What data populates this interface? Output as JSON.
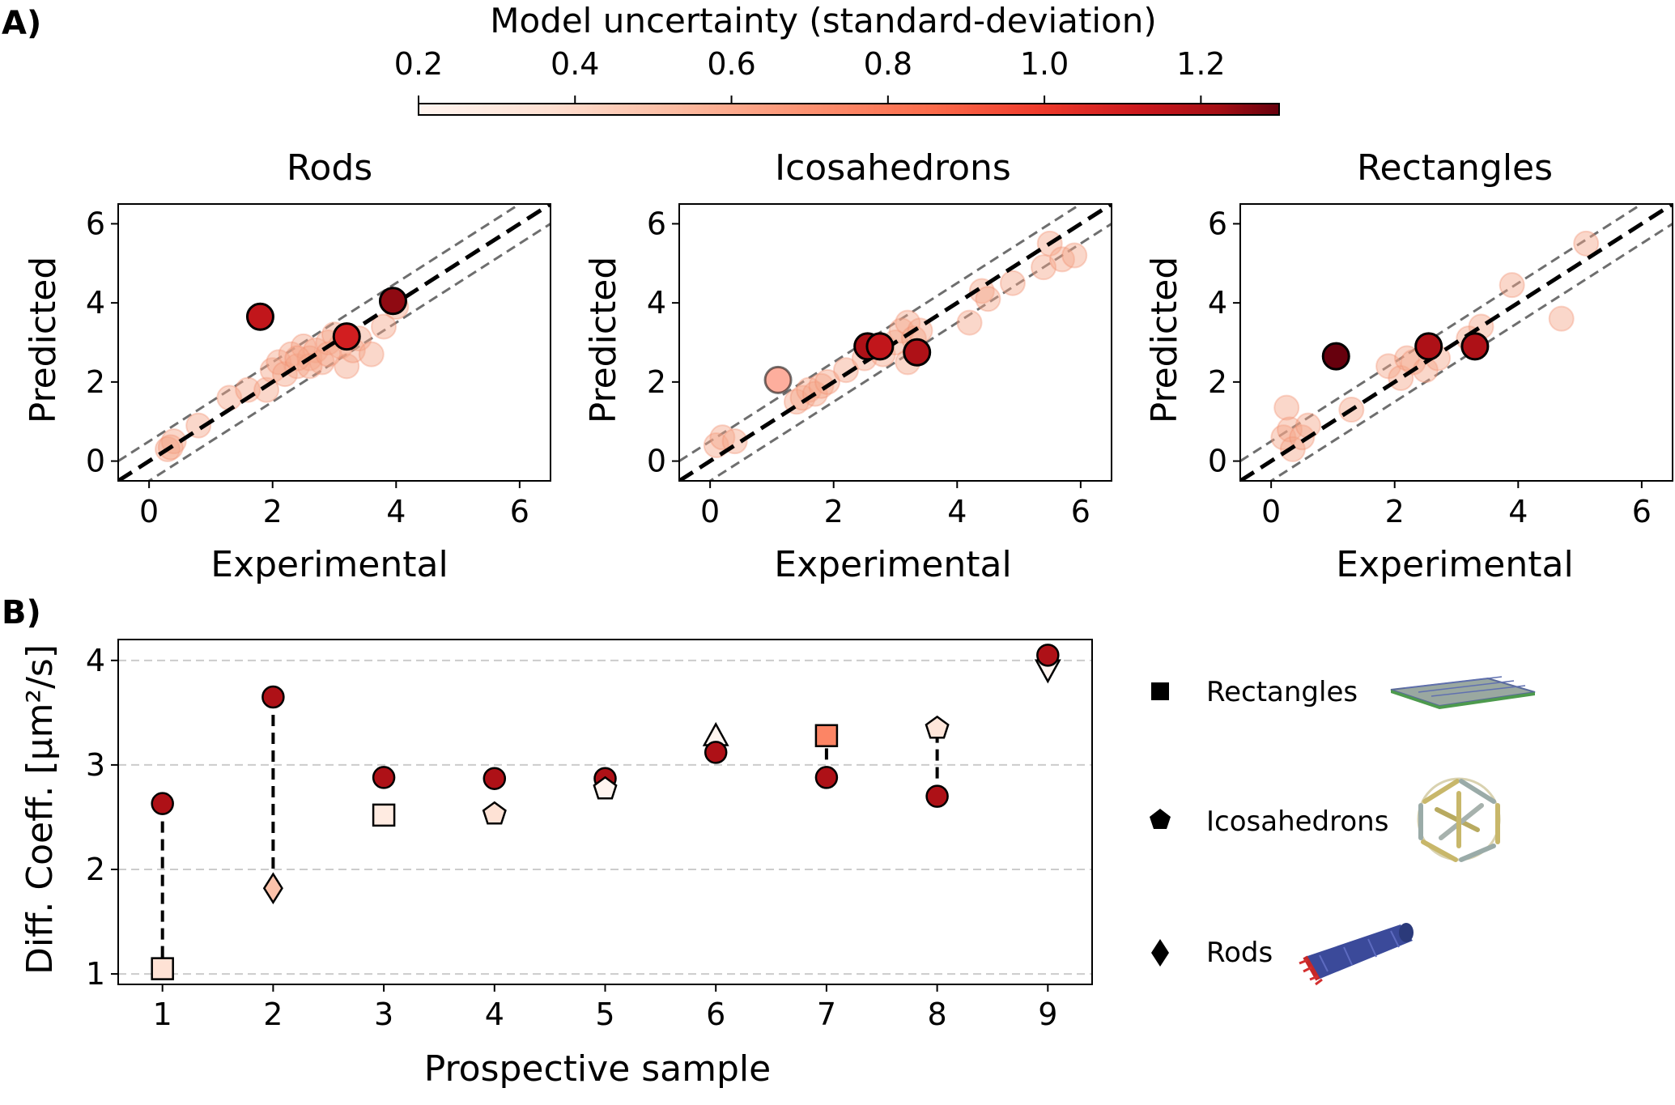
{
  "figure": {
    "panel_a_label": "A)",
    "panel_b_label": "B)"
  },
  "colorbar": {
    "title": "Model uncertainty (standard-deviation)",
    "ticks": [
      "0.2",
      "0.4",
      "0.6",
      "0.8",
      "1.0",
      "1.2"
    ],
    "range": [
      0.2,
      1.3
    ],
    "colormap": "Reds"
  },
  "chart_data": [
    {
      "type": "scatter",
      "title": "Rods",
      "xlabel": "Experimental",
      "ylabel": "Predicted",
      "xlim": [
        -0.5,
        6.5
      ],
      "ylim": [
        -0.5,
        6.5
      ],
      "xticks": [
        "0",
        "2",
        "4",
        "6"
      ],
      "yticks": [
        "0",
        "2",
        "4",
        "6"
      ],
      "identity_line": true,
      "band_offset": 0.5,
      "training_points": [
        [
          0.3,
          0.3
        ],
        [
          0.4,
          0.5
        ],
        [
          0.35,
          0.35
        ],
        [
          0.8,
          0.9
        ],
        [
          1.3,
          1.6
        ],
        [
          1.6,
          1.8
        ],
        [
          1.9,
          1.8
        ],
        [
          2.0,
          2.3
        ],
        [
          2.1,
          2.5
        ],
        [
          2.2,
          2.2
        ],
        [
          2.3,
          2.7
        ],
        [
          2.4,
          2.4
        ],
        [
          2.5,
          2.9
        ],
        [
          2.6,
          2.6
        ],
        [
          2.7,
          2.8
        ],
        [
          2.8,
          2.5
        ],
        [
          2.9,
          3.0
        ],
        [
          3.0,
          3.2
        ],
        [
          3.1,
          2.9
        ],
        [
          3.2,
          2.4
        ],
        [
          3.3,
          2.8
        ],
        [
          3.4,
          3.1
        ],
        [
          3.6,
          2.7
        ],
        [
          3.8,
          3.4
        ],
        [
          4.0,
          3.9
        ],
        [
          2.6,
          2.4
        ],
        [
          2.4,
          2.6
        ],
        [
          2.9,
          2.7
        ]
      ],
      "highlight_points": [
        {
          "x": 1.8,
          "y": 3.65,
          "std": 1.15
        },
        {
          "x": 3.2,
          "y": 3.15,
          "std": 1.1
        },
        {
          "x": 3.95,
          "y": 4.05,
          "std": 1.25
        }
      ]
    },
    {
      "type": "scatter",
      "title": "Icosahedrons",
      "xlabel": "Experimental",
      "ylabel": "Predicted",
      "xlim": [
        -0.5,
        6.5
      ],
      "ylim": [
        -0.5,
        6.5
      ],
      "xticks": [
        "0",
        "2",
        "4",
        "6"
      ],
      "yticks": [
        "0",
        "2",
        "4",
        "6"
      ],
      "identity_line": true,
      "band_offset": 0.5,
      "training_points": [
        [
          0.1,
          0.4
        ],
        [
          0.2,
          0.6
        ],
        [
          0.4,
          0.5
        ],
        [
          1.4,
          1.5
        ],
        [
          1.5,
          1.6
        ],
        [
          1.6,
          1.8
        ],
        [
          1.7,
          1.7
        ],
        [
          1.8,
          1.9
        ],
        [
          1.9,
          2.0
        ],
        [
          2.2,
          2.3
        ],
        [
          2.5,
          2.6
        ],
        [
          2.8,
          2.7
        ],
        [
          3.0,
          3.0
        ],
        [
          3.1,
          3.3
        ],
        [
          3.2,
          3.5
        ],
        [
          3.3,
          3.1
        ],
        [
          3.4,
          3.3
        ],
        [
          3.2,
          2.5
        ],
        [
          4.2,
          3.5
        ],
        [
          4.4,
          4.3
        ],
        [
          4.5,
          4.1
        ],
        [
          4.9,
          4.5
        ],
        [
          5.4,
          4.9
        ],
        [
          5.5,
          5.5
        ],
        [
          5.7,
          5.1
        ],
        [
          5.9,
          5.2
        ]
      ],
      "highlight_points": [
        {
          "x": 1.1,
          "y": 2.05,
          "std": 0.85
        },
        {
          "x": 2.55,
          "y": 2.9,
          "std": 1.2
        },
        {
          "x": 2.75,
          "y": 2.9,
          "std": 1.15
        },
        {
          "x": 3.35,
          "y": 2.75,
          "std": 1.2
        }
      ]
    },
    {
      "type": "scatter",
      "title": "Rectangles",
      "xlabel": "Experimental",
      "ylabel": "Predicted",
      "xlim": [
        -0.5,
        6.5
      ],
      "ylim": [
        -0.5,
        6.5
      ],
      "xticks": [
        "0",
        "2",
        "4",
        "6"
      ],
      "yticks": [
        "0",
        "2",
        "4",
        "6"
      ],
      "identity_line": true,
      "band_offset": 0.5,
      "training_points": [
        [
          0.2,
          0.6
        ],
        [
          0.25,
          1.35
        ],
        [
          0.3,
          0.8
        ],
        [
          0.35,
          0.3
        ],
        [
          0.5,
          0.6
        ],
        [
          0.6,
          0.9
        ],
        [
          1.3,
          1.3
        ],
        [
          1.9,
          2.4
        ],
        [
          2.1,
          2.1
        ],
        [
          2.2,
          2.6
        ],
        [
          2.3,
          2.5
        ],
        [
          2.5,
          2.3
        ],
        [
          2.7,
          2.6
        ],
        [
          3.2,
          3.1
        ],
        [
          3.4,
          3.4
        ],
        [
          3.9,
          4.45
        ],
        [
          4.7,
          3.6
        ],
        [
          5.1,
          5.5
        ]
      ],
      "highlight_points": [
        {
          "x": 1.05,
          "y": 2.65,
          "std": 1.3
        },
        {
          "x": 2.55,
          "y": 2.9,
          "std": 1.2
        },
        {
          "x": 3.3,
          "y": 2.9,
          "std": 1.2
        }
      ]
    },
    {
      "type": "scatter",
      "xlabel": "Prospective sample",
      "ylabel": "Diff. Coeff. [μm²/s]",
      "xlim": [
        0.6,
        9.4
      ],
      "ylim": [
        0.9,
        4.2
      ],
      "xticks": [
        "1",
        "2",
        "3",
        "4",
        "5",
        "6",
        "7",
        "8",
        "9"
      ],
      "yticks": [
        "1",
        "2",
        "3",
        "4"
      ],
      "grid": "horizontal-dashed",
      "samples": [
        {
          "x": 1,
          "predicted": 2.63,
          "experimental": 1.05,
          "shape": "square",
          "std": 0.35,
          "connector": true
        },
        {
          "x": 2,
          "predicted": 3.65,
          "experimental": 1.82,
          "shape": "diamond",
          "std": 0.5,
          "connector": true
        },
        {
          "x": 3,
          "predicted": 2.88,
          "experimental": 2.52,
          "shape": "square",
          "std": 0.28,
          "connector": false
        },
        {
          "x": 4,
          "predicted": 2.87,
          "experimental": 2.53,
          "shape": "pentagon",
          "std": 0.35,
          "connector": false
        },
        {
          "x": 5,
          "predicted": 2.87,
          "experimental": 2.77,
          "shape": "pentagon",
          "std": 0.2,
          "connector": false
        },
        {
          "x": 6,
          "predicted": 3.12,
          "experimental": 3.27,
          "shape": "triangle-up",
          "std": 0.2,
          "connector": false
        },
        {
          "x": 7,
          "predicted": 2.88,
          "experimental": 3.28,
          "shape": "square",
          "std": 0.75,
          "connector": true
        },
        {
          "x": 8,
          "predicted": 2.7,
          "experimental": 3.35,
          "shape": "pentagon",
          "std": 0.32,
          "connector": true
        },
        {
          "x": 9,
          "predicted": 4.05,
          "experimental": 3.92,
          "shape": "triangle-down",
          "std": 0.2,
          "connector": false
        }
      ],
      "predicted_std": 1.2
    }
  ],
  "legend": [
    {
      "shape": "square",
      "label": "Rectangles"
    },
    {
      "shape": "pentagon",
      "label": "Icosahedrons"
    },
    {
      "shape": "diamond",
      "label": "Rods"
    }
  ]
}
